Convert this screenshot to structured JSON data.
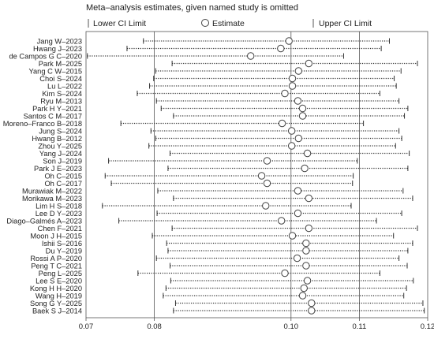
{
  "chart_data": {
    "type": "scatter",
    "title": "Meta–analysis estimates, given named study is omitted",
    "legend": {
      "lower": "Lower CI Limit",
      "estimate": "Estimate",
      "upper": "Upper CI Limit"
    },
    "xlim": [
      0.07,
      0.12
    ],
    "xticks": [
      0.07,
      0.08,
      0.1,
      0.11,
      0.12
    ],
    "xtick_labels": [
      "0.07",
      "0.08",
      "0.10",
      "0.11",
      "0.12"
    ],
    "reference_lines": [
      0.08,
      0.1,
      0.11
    ],
    "studies": [
      {
        "label": "Jang W–2023",
        "estimate": 0.0997,
        "lower": 0.0784,
        "upper": 0.1144
      },
      {
        "label": "Hwang J–2023",
        "estimate": 0.0985,
        "lower": 0.076,
        "upper": 0.1132
      },
      {
        "label": "de Campos G C–2020",
        "estimate": 0.0941,
        "lower": 0.0702,
        "upper": 0.1077
      },
      {
        "label": "Park M–2025",
        "estimate": 0.1026,
        "lower": 0.0826,
        "upper": 0.1185
      },
      {
        "label": "Yang C W–2015",
        "estimate": 0.1011,
        "lower": 0.0802,
        "upper": 0.1161
      },
      {
        "label": "Choi S–2024",
        "estimate": 0.1002,
        "lower": 0.0799,
        "upper": 0.1151
      },
      {
        "label": "Lu L–2022",
        "estimate": 0.1002,
        "lower": 0.0793,
        "upper": 0.1154
      },
      {
        "label": "Kim S–2024",
        "estimate": 0.0991,
        "lower": 0.0775,
        "upper": 0.113
      },
      {
        "label": "Ryu M–2013",
        "estimate": 0.101,
        "lower": 0.0803,
        "upper": 0.1158
      },
      {
        "label": "Park H Y–2021",
        "estimate": 0.1017,
        "lower": 0.081,
        "upper": 0.1171
      },
      {
        "label": "Santos C M–2017",
        "estimate": 0.1017,
        "lower": 0.0828,
        "upper": 0.1166
      },
      {
        "label": "Moreno–Franco B–2018",
        "estimate": 0.0987,
        "lower": 0.0751,
        "upper": 0.1106
      },
      {
        "label": "Jung S–2024",
        "estimate": 0.1001,
        "lower": 0.0795,
        "upper": 0.1158
      },
      {
        "label": "Hwang B–2012",
        "estimate": 0.1011,
        "lower": 0.0802,
        "upper": 0.1162
      },
      {
        "label": "Zhou Y–2025",
        "estimate": 0.1001,
        "lower": 0.0792,
        "upper": 0.1153
      },
      {
        "label": "Yang J–2024",
        "estimate": 0.1024,
        "lower": 0.0823,
        "upper": 0.1173
      },
      {
        "label": "Son J–2019",
        "estimate": 0.0965,
        "lower": 0.0733,
        "upper": 0.1097
      },
      {
        "label": "Park J E–2023",
        "estimate": 0.102,
        "lower": 0.082,
        "upper": 0.1171
      },
      {
        "label": "Oh C–2015",
        "estimate": 0.0957,
        "lower": 0.0728,
        "upper": 0.1091
      },
      {
        "label": "Oh C–2017",
        "estimate": 0.0965,
        "lower": 0.0737,
        "upper": 0.109
      },
      {
        "label": "Murawiak M–2022",
        "estimate": 0.101,
        "lower": 0.0805,
        "upper": 0.1164
      },
      {
        "label": "Morikawa M–2023",
        "estimate": 0.1026,
        "lower": 0.0828,
        "upper": 0.1178
      },
      {
        "label": "Lim H S–2018",
        "estimate": 0.0963,
        "lower": 0.0724,
        "upper": 0.1088
      },
      {
        "label": "Lee D Y–2023",
        "estimate": 0.101,
        "lower": 0.0804,
        "upper": 0.1162
      },
      {
        "label": "Diago–Galmés A–2023",
        "estimate": 0.0986,
        "lower": 0.0748,
        "upper": 0.1125
      },
      {
        "label": "Chen F–2021",
        "estimate": 0.1026,
        "lower": 0.0826,
        "upper": 0.1185
      },
      {
        "label": "Moon J H–2015",
        "estimate": 0.1002,
        "lower": 0.0797,
        "upper": 0.115
      },
      {
        "label": "Ishii S–2016",
        "estimate": 0.1022,
        "lower": 0.0818,
        "upper": 0.1178
      },
      {
        "label": "Du Y–2019",
        "estimate": 0.1022,
        "lower": 0.082,
        "upper": 0.1171
      },
      {
        "label": "Rossi A P–2020",
        "estimate": 0.1009,
        "lower": 0.0803,
        "upper": 0.1158
      },
      {
        "label": "Peng T C–2021",
        "estimate": 0.1022,
        "lower": 0.0823,
        "upper": 0.117
      },
      {
        "label": "Peng L–2025",
        "estimate": 0.0991,
        "lower": 0.0776,
        "upper": 0.113
      },
      {
        "label": "Lee S E–2020",
        "estimate": 0.1024,
        "lower": 0.0824,
        "upper": 0.1179
      },
      {
        "label": "Kong H H–2020",
        "estimate": 0.1019,
        "lower": 0.0817,
        "upper": 0.1169
      },
      {
        "label": "Wang H–2019",
        "estimate": 0.1017,
        "lower": 0.0813,
        "upper": 0.1165
      },
      {
        "label": "Song G Y–2025",
        "estimate": 0.103,
        "lower": 0.0831,
        "upper": 0.1193
      },
      {
        "label": "Baek S J–2014",
        "estimate": 0.103,
        "lower": 0.0828,
        "upper": 0.1195
      }
    ]
  }
}
